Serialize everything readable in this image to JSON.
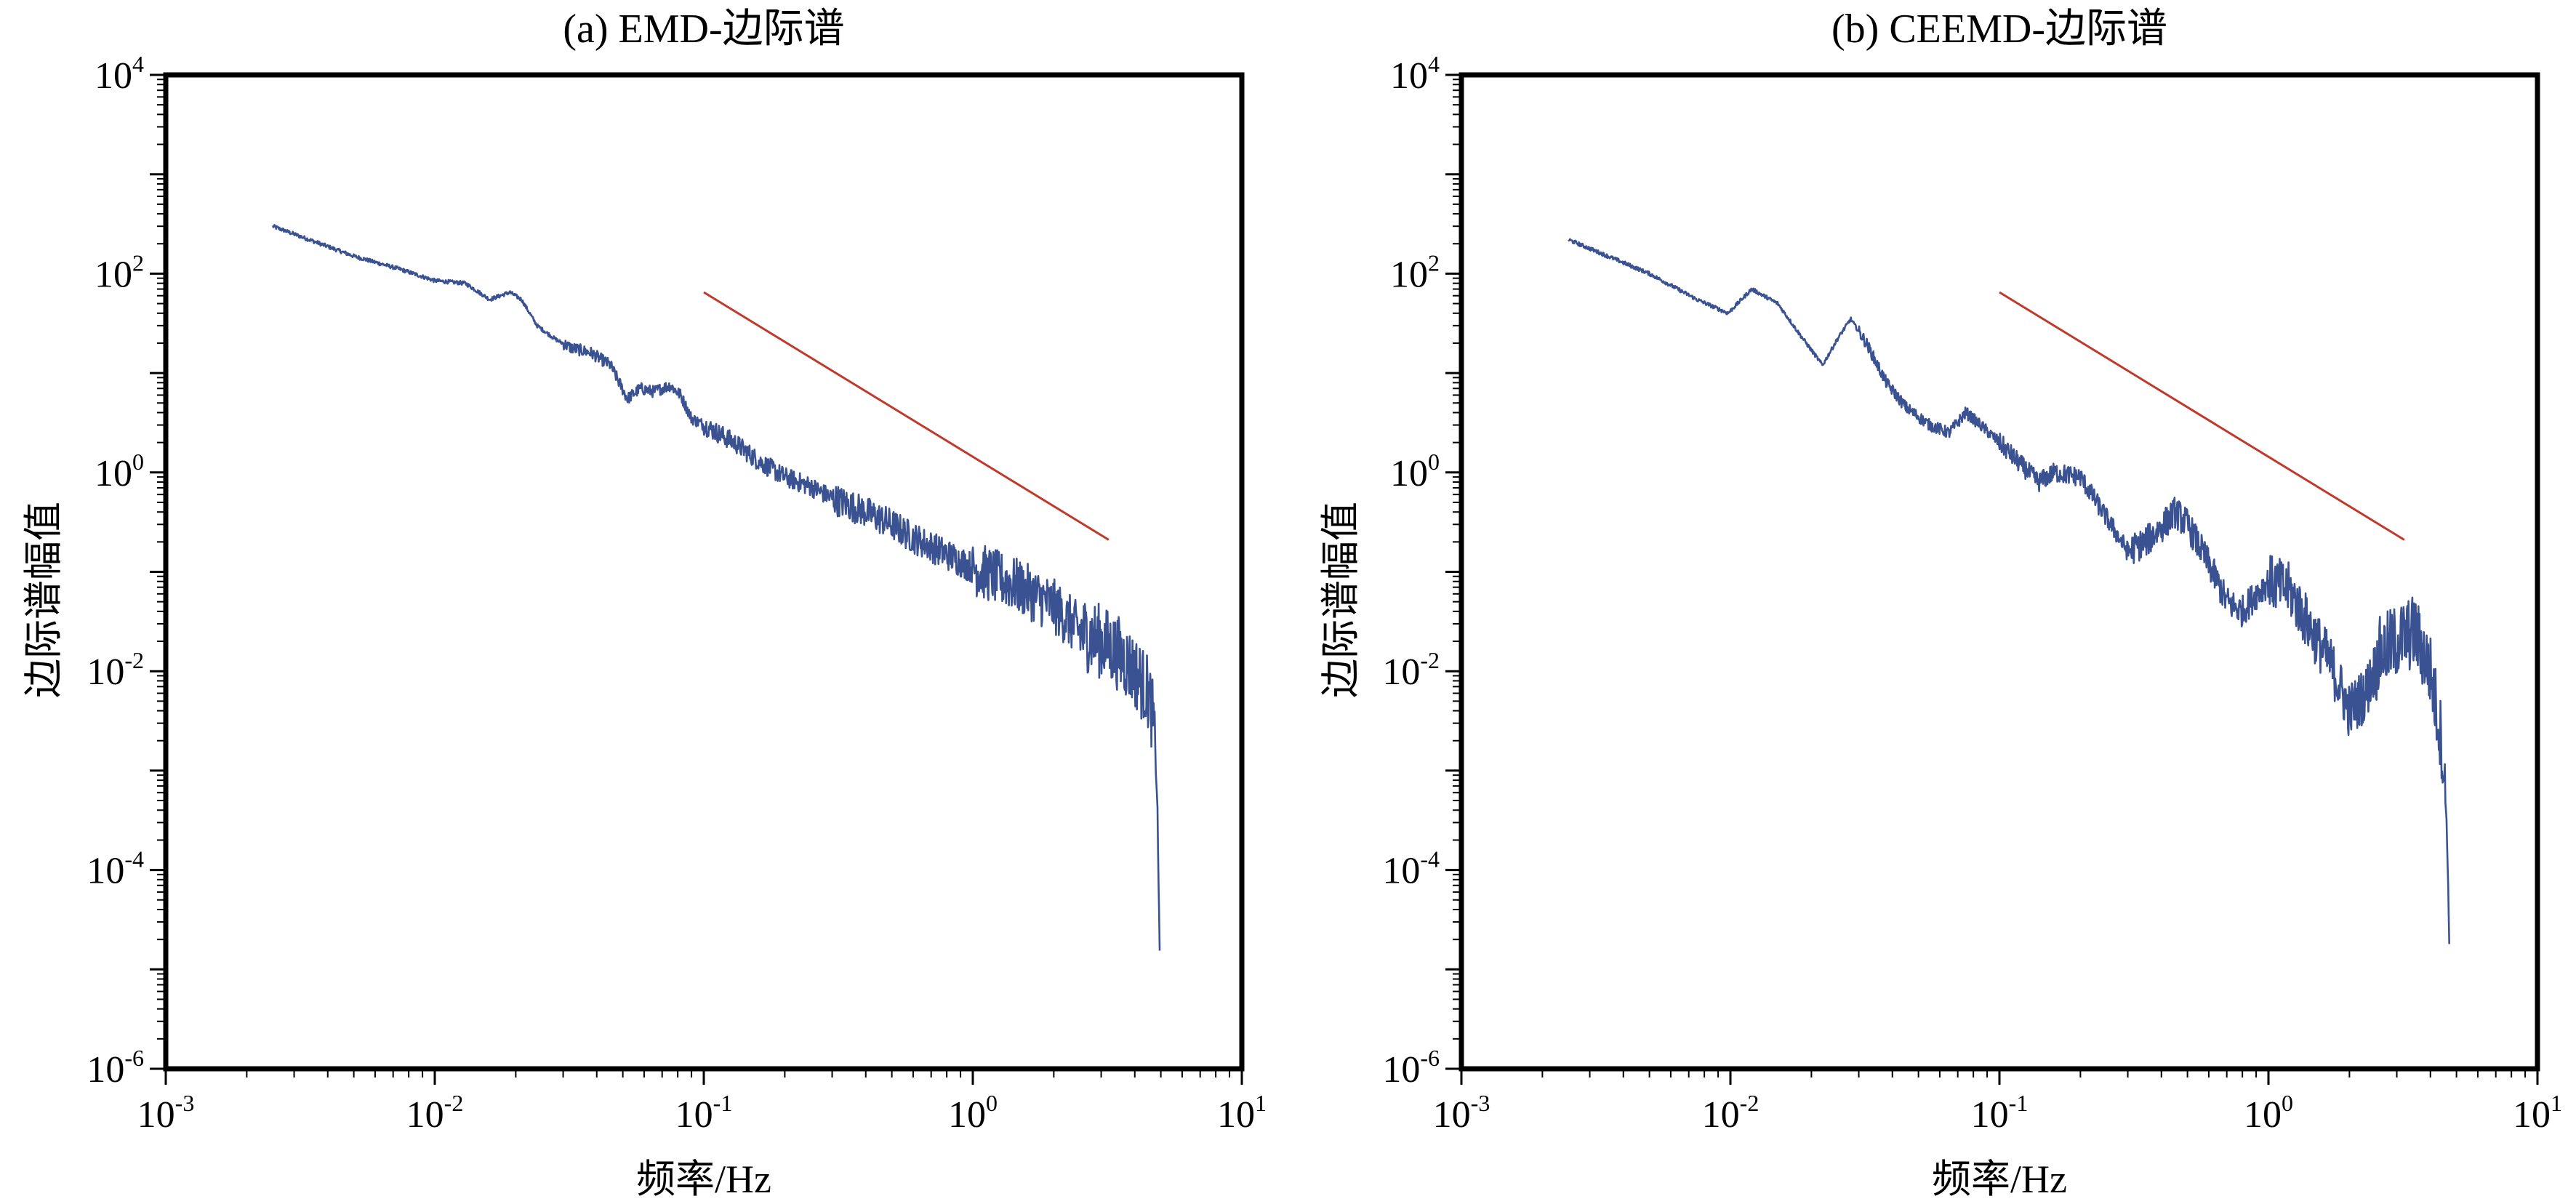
{
  "chart_data": [
    {
      "type": "line",
      "title": "(a) EMD-边际谱",
      "xlabel": "频率/Hz",
      "ylabel": "边际谱幅值",
      "xscale": "log",
      "yscale": "log",
      "xlim": [
        0.001,
        10
      ],
      "ylim": [
        1e-06,
        10000
      ],
      "x_ticks": [
        {
          "base": "10",
          "exp": "-3"
        },
        {
          "base": "10",
          "exp": "-2"
        },
        {
          "base": "10",
          "exp": "-1"
        },
        {
          "base": "10",
          "exp": "0"
        },
        {
          "base": "10",
          "exp": "1"
        }
      ],
      "y_ticks": [
        {
          "base": "10",
          "exp": "-6"
        },
        {
          "base": "10",
          "exp": "-4"
        },
        {
          "base": "10",
          "exp": "-2"
        },
        {
          "base": "10",
          "exp": "0"
        },
        {
          "base": "10",
          "exp": "2"
        },
        {
          "base": "10",
          "exp": "4"
        }
      ],
      "grid": false,
      "series": [
        {
          "color": "#3a5291",
          "noisy": true,
          "points": [
            [
              0.0025,
              300
            ],
            [
              0.005,
              150
            ],
            [
              0.0075,
              110
            ],
            [
              0.01,
              85
            ],
            [
              0.013,
              80
            ],
            [
              0.016,
              55
            ],
            [
              0.019,
              65
            ],
            [
              0.021,
              55
            ],
            [
              0.024,
              30
            ],
            [
              0.028,
              22
            ],
            [
              0.032,
              18
            ],
            [
              0.038,
              16
            ],
            [
              0.045,
              12
            ],
            [
              0.052,
              5.5
            ],
            [
              0.058,
              7
            ],
            [
              0.065,
              6.5
            ],
            [
              0.075,
              7.5
            ],
            [
              0.082,
              6
            ],
            [
              0.09,
              3.5
            ],
            [
              0.1,
              3.0
            ],
            [
              0.13,
              2.0
            ],
            [
              0.16,
              1.3
            ],
            [
              0.2,
              0.9
            ],
            [
              0.25,
              0.72
            ],
            [
              0.3,
              0.55
            ],
            [
              0.4,
              0.4
            ],
            [
              0.5,
              0.3
            ],
            [
              0.6,
              0.22
            ],
            [
              0.8,
              0.15
            ],
            [
              1.0,
              0.11
            ],
            [
              1.5,
              0.07
            ],
            [
              2.0,
              0.045
            ],
            [
              2.5,
              0.025
            ],
            [
              3.0,
              0.02
            ],
            [
              3.5,
              0.015
            ],
            [
              4.0,
              0.01
            ],
            [
              4.5,
              0.006
            ],
            [
              4.7,
              0.003
            ],
            [
              4.85,
              0.0005
            ],
            [
              4.95,
              1.5e-05
            ]
          ]
        },
        {
          "color": "#c0392b",
          "noisy": false,
          "points": [
            [
              0.1,
              65
            ],
            [
              3.2,
              0.21
            ]
          ]
        }
      ]
    },
    {
      "type": "line",
      "title": "(b) CEEMD-边际谱",
      "xlabel": "频率/Hz",
      "ylabel": "边际谱幅值",
      "xscale": "log",
      "yscale": "log",
      "xlim": [
        0.001,
        10
      ],
      "ylim": [
        1e-06,
        10000
      ],
      "x_ticks": [
        {
          "base": "10",
          "exp": "-3"
        },
        {
          "base": "10",
          "exp": "-2"
        },
        {
          "base": "10",
          "exp": "-1"
        },
        {
          "base": "10",
          "exp": "0"
        },
        {
          "base": "10",
          "exp": "1"
        }
      ],
      "y_ticks": [
        {
          "base": "10",
          "exp": "-6"
        },
        {
          "base": "10",
          "exp": "-4"
        },
        {
          "base": "10",
          "exp": "-2"
        },
        {
          "base": "10",
          "exp": "0"
        },
        {
          "base": "10",
          "exp": "2"
        },
        {
          "base": "10",
          "exp": "4"
        }
      ],
      "grid": false,
      "series": [
        {
          "color": "#3a5291",
          "noisy": true,
          "points": [
            [
              0.0025,
              220
            ],
            [
              0.005,
              100
            ],
            [
              0.0075,
              55
            ],
            [
              0.0098,
              40
            ],
            [
              0.012,
              70
            ],
            [
              0.015,
              50
            ],
            [
              0.018,
              25
            ],
            [
              0.022,
              12
            ],
            [
              0.025,
              22
            ],
            [
              0.028,
              35
            ],
            [
              0.032,
              20
            ],
            [
              0.038,
              8
            ],
            [
              0.045,
              4.5
            ],
            [
              0.055,
              3.0
            ],
            [
              0.065,
              2.5
            ],
            [
              0.075,
              4.0
            ],
            [
              0.085,
              3.0
            ],
            [
              0.1,
              2.0
            ],
            [
              0.12,
              1.2
            ],
            [
              0.14,
              0.8
            ],
            [
              0.16,
              1.0
            ],
            [
              0.2,
              0.9
            ],
            [
              0.25,
              0.35
            ],
            [
              0.3,
              0.16
            ],
            [
              0.35,
              0.2
            ],
            [
              0.4,
              0.28
            ],
            [
              0.45,
              0.4
            ],
            [
              0.5,
              0.3
            ],
            [
              0.6,
              0.12
            ],
            [
              0.7,
              0.05
            ],
            [
              0.8,
              0.04
            ],
            [
              0.9,
              0.06
            ],
            [
              1.0,
              0.08
            ],
            [
              1.2,
              0.065
            ],
            [
              1.4,
              0.03
            ],
            [
              1.7,
              0.012
            ],
            [
              2.0,
              0.004
            ],
            [
              2.3,
              0.006
            ],
            [
              2.6,
              0.015
            ],
            [
              3.0,
              0.02
            ],
            [
              3.5,
              0.025
            ],
            [
              4.0,
              0.01
            ],
            [
              4.4,
              0.002
            ],
            [
              4.6,
              0.0003
            ],
            [
              4.7,
              2e-05
            ]
          ]
        },
        {
          "color": "#c0392b",
          "noisy": false,
          "points": [
            [
              0.1,
              65
            ],
            [
              3.2,
              0.21
            ]
          ]
        }
      ]
    }
  ]
}
